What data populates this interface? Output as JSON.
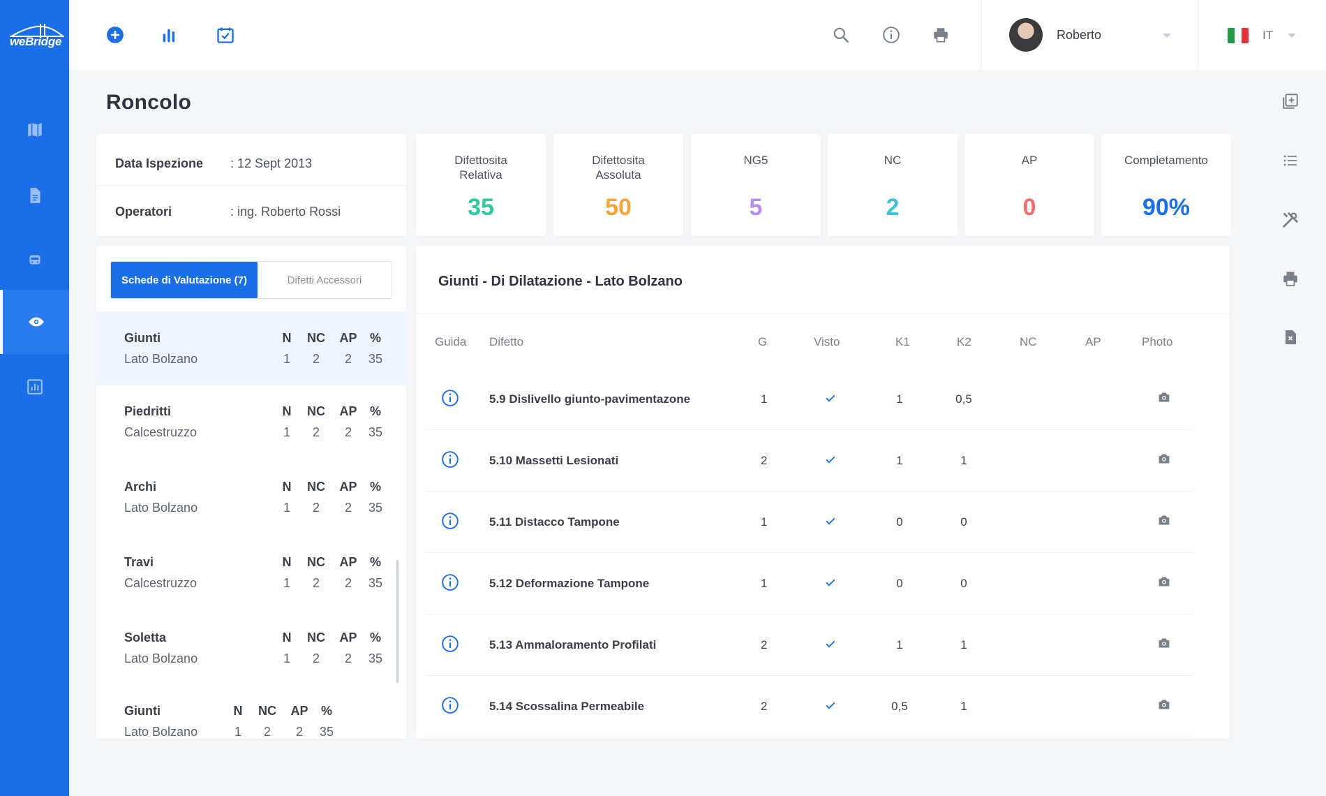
{
  "app": {
    "logo_text": "weBridge",
    "brand_color": "#1a6fe8"
  },
  "sidebar": {
    "items": [
      {
        "icon": "map-icon",
        "active": false
      },
      {
        "icon": "document-icon",
        "active": false
      },
      {
        "icon": "train-icon",
        "active": false
      },
      {
        "icon": "eye-icon",
        "active": true
      },
      {
        "icon": "bar-chart-icon",
        "active": false
      }
    ]
  },
  "topbar": {
    "left_icons": [
      "add-circle-icon",
      "bar-chart-icon",
      "calendar-check-icon"
    ],
    "right_icons": [
      "search-icon",
      "info-icon",
      "print-icon"
    ],
    "user": {
      "name": "Roberto"
    },
    "language": {
      "code": "IT",
      "flag": "italy-flag-icon"
    }
  },
  "right_rail": {
    "icons": [
      "add-document-icon",
      "list-icon",
      "tools-icon",
      "print-icon",
      "delete-file-icon"
    ]
  },
  "page": {
    "title": "Roncolo"
  },
  "info": {
    "rows": [
      {
        "label": "Data Ispezione",
        "value": ": 12 Sept 2013"
      },
      {
        "label": "Operatori",
        "value": ": ing. Roberto Rossi"
      }
    ]
  },
  "stats": [
    {
      "label": "Difettosita Relativa",
      "value": "35",
      "color": "#2ec99e"
    },
    {
      "label": "Difettosita Assoluta",
      "value": "50",
      "color": "#f7a53a"
    },
    {
      "label": "NG5",
      "value": "5",
      "color": "#b48cf2"
    },
    {
      "label": "NC",
      "value": "2",
      "color": "#3fc1d9"
    },
    {
      "label": "AP",
      "value": "0",
      "color": "#f26d6d"
    },
    {
      "label": "Completamento",
      "value": "90%",
      "color": "#1a6fe8"
    }
  ],
  "left_panel": {
    "tabs": [
      "Schede di Valutazione (7)",
      "Difetti Accessori"
    ],
    "columns": [
      "N",
      "NC",
      "AP",
      "%"
    ],
    "items": [
      {
        "title": "Giunti",
        "sub": "Lato Bolzano",
        "values": [
          "1",
          "2",
          "2",
          "35"
        ],
        "active": true
      },
      {
        "title": "Piedritti",
        "sub": "Calcestruzzo",
        "values": [
          "1",
          "2",
          "2",
          "35"
        ],
        "active": false
      },
      {
        "title": "Archi",
        "sub": "Lato Bolzano",
        "values": [
          "1",
          "2",
          "2",
          "35"
        ],
        "active": false
      },
      {
        "title": "Travi",
        "sub": "Calcestruzzo",
        "values": [
          "1",
          "2",
          "2",
          "35"
        ],
        "active": false
      },
      {
        "title": "Soletta",
        "sub": "Lato Bolzano",
        "values": [
          "1",
          "2",
          "2",
          "35"
        ],
        "active": false
      },
      {
        "title": "Giunti",
        "sub": "Lato Bolzano",
        "values": [
          "1",
          "2",
          "2",
          "35"
        ],
        "active": false
      }
    ]
  },
  "table": {
    "title": "Giunti - Di Dilatazione - Lato Bolzano",
    "headers": [
      "Guida",
      "Difetto",
      "G",
      "Visto",
      "K1",
      "K2",
      "NC",
      "AP",
      "Photo"
    ],
    "rows": [
      {
        "difetto": "5.9 Dislivello giunto-pavimentazone",
        "g": "1",
        "visto": true,
        "k1": "1",
        "k2": "0,5",
        "nc": "",
        "ap": ""
      },
      {
        "difetto": "5.10 Massetti Lesionati",
        "g": "2",
        "visto": true,
        "k1": "1",
        "k2": "1",
        "nc": "",
        "ap": ""
      },
      {
        "difetto": "5.11 Distacco Tampone",
        "g": "1",
        "visto": true,
        "k1": "0",
        "k2": "0",
        "nc": "",
        "ap": ""
      },
      {
        "difetto": "5.12 Deformazione Tampone",
        "g": "1",
        "visto": true,
        "k1": "0",
        "k2": "0",
        "nc": "",
        "ap": ""
      },
      {
        "difetto": "5.13 Ammaloramento Profilati",
        "g": "2",
        "visto": true,
        "k1": "1",
        "k2": "1",
        "nc": "",
        "ap": ""
      },
      {
        "difetto": "5.14 Scossalina Permeabile",
        "g": "2",
        "visto": true,
        "k1": "0,5",
        "k2": "1",
        "nc": "",
        "ap": ""
      }
    ]
  }
}
